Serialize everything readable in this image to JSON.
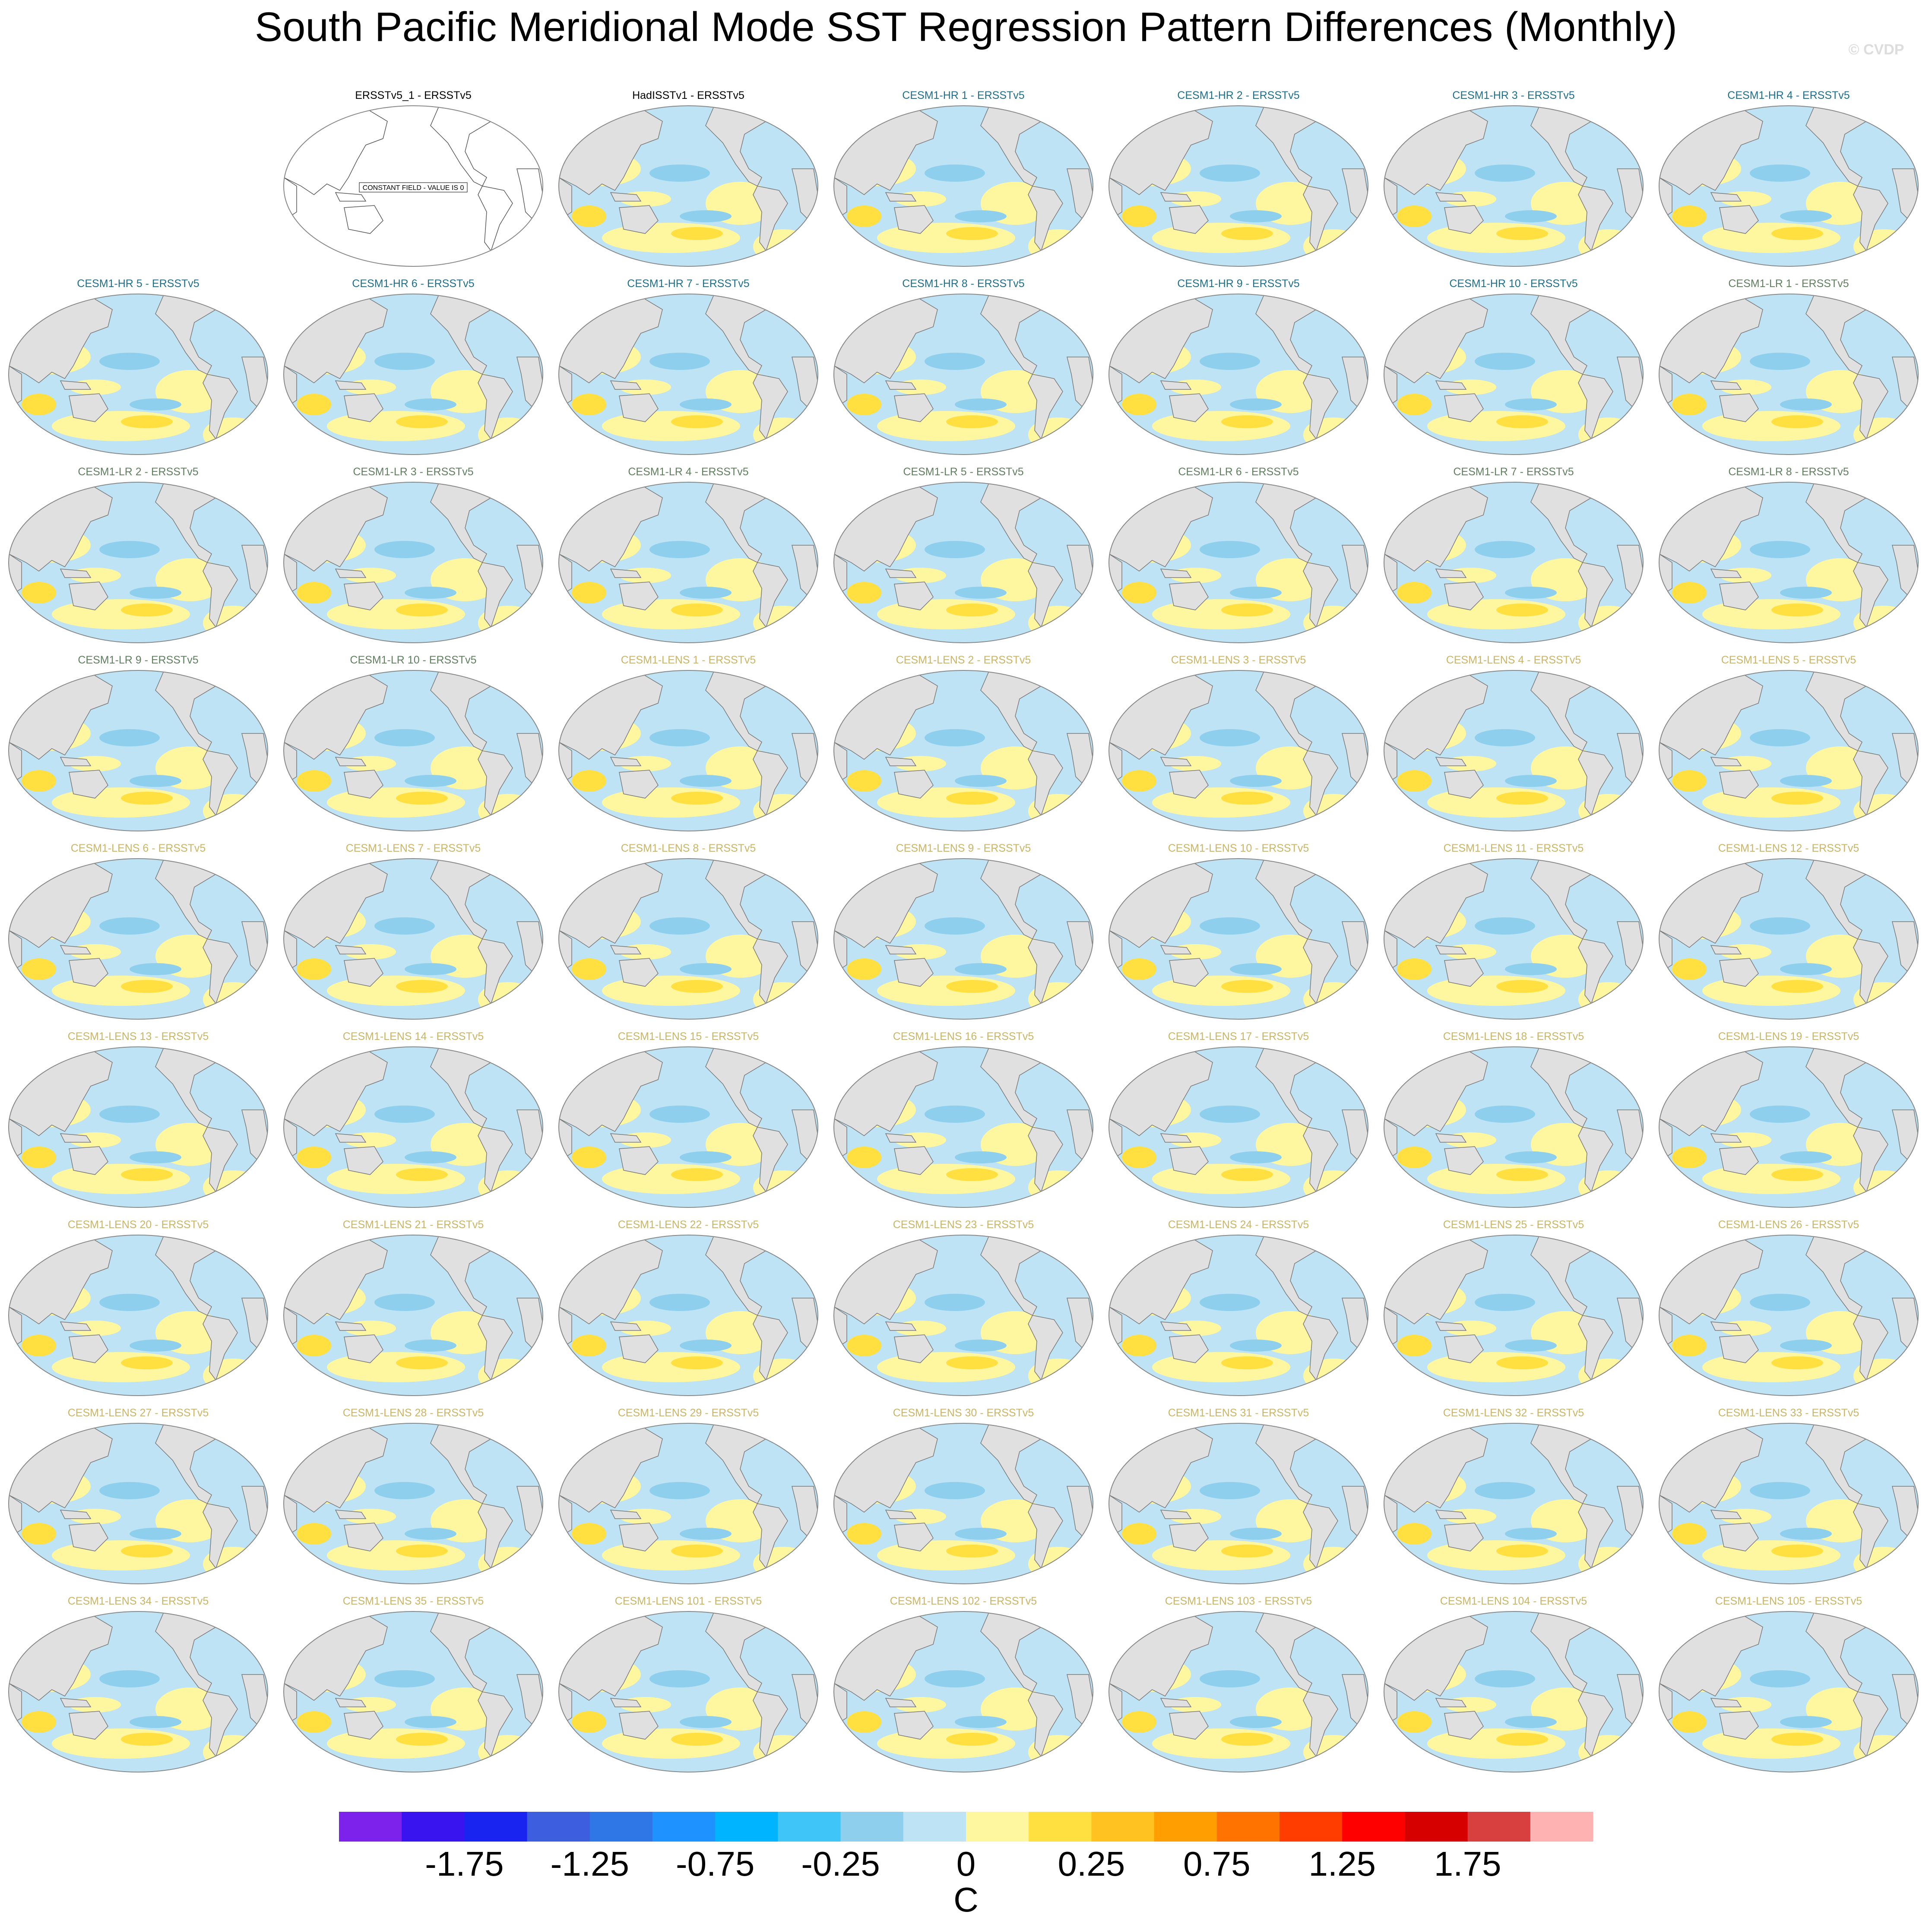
{
  "title": "South Pacific Meridional Mode SST Regression Pattern Differences (Monthly)",
  "watermark": "© CVDP",
  "panels": [
    {
      "title": "ERSSTv5_1 - ERSSTv5",
      "color": "#000000",
      "note": "CONSTANT FIELD - VALUE IS 0"
    },
    {
      "title": "HadISSTv1 - ERSSTv5",
      "color": "#000000"
    },
    {
      "title": "CESM1-HR 1 - ERSSTv5",
      "color": "#1f6f8b"
    },
    {
      "title": "CESM1-HR 2 - ERSSTv5",
      "color": "#1f6f8b"
    },
    {
      "title": "CESM1-HR 3 - ERSSTv5",
      "color": "#1f6f8b"
    },
    {
      "title": "CESM1-HR 4 - ERSSTv5",
      "color": "#1f6f8b"
    },
    {
      "title": "CESM1-HR 5 - ERSSTv5",
      "color": "#1f6f8b"
    },
    {
      "title": "CESM1-HR 6 - ERSSTv5",
      "color": "#1f6f8b"
    },
    {
      "title": "CESM1-HR 7 - ERSSTv5",
      "color": "#1f6f8b"
    },
    {
      "title": "CESM1-HR 8 - ERSSTv5",
      "color": "#1f6f8b"
    },
    {
      "title": "CESM1-HR 9 - ERSSTv5",
      "color": "#1f6f8b"
    },
    {
      "title": "CESM1-HR 10 - ERSSTv5",
      "color": "#1f6f8b"
    },
    {
      "title": "CESM1-LR 1 - ERSSTv5",
      "color": "#5f7f5f"
    },
    {
      "title": "CESM1-LR 2 - ERSSTv5",
      "color": "#5f7f5f"
    },
    {
      "title": "CESM1-LR 3 - ERSSTv5",
      "color": "#5f7f5f"
    },
    {
      "title": "CESM1-LR 4 - ERSSTv5",
      "color": "#5f7f5f"
    },
    {
      "title": "CESM1-LR 5 - ERSSTv5",
      "color": "#5f7f5f"
    },
    {
      "title": "CESM1-LR 6 - ERSSTv5",
      "color": "#5f7f5f"
    },
    {
      "title": "CESM1-LR 7 - ERSSTv5",
      "color": "#5f7f5f"
    },
    {
      "title": "CESM1-LR 8 - ERSSTv5",
      "color": "#5f7f5f"
    },
    {
      "title": "CESM1-LR 9 - ERSSTv5",
      "color": "#5f7f5f"
    },
    {
      "title": "CESM1-LR 10 - ERSSTv5",
      "color": "#5f7f5f"
    },
    {
      "title": "CESM1-LENS 1 - ERSSTv5",
      "color": "#c9b565"
    },
    {
      "title": "CESM1-LENS 2 - ERSSTv5",
      "color": "#c9b565"
    },
    {
      "title": "CESM1-LENS 3 - ERSSTv5",
      "color": "#c9b565"
    },
    {
      "title": "CESM1-LENS 4 - ERSSTv5",
      "color": "#c9b565"
    },
    {
      "title": "CESM1-LENS 5 - ERSSTv5",
      "color": "#c9b565"
    },
    {
      "title": "CESM1-LENS 6 - ERSSTv5",
      "color": "#c9b565"
    },
    {
      "title": "CESM1-LENS 7 - ERSSTv5",
      "color": "#c9b565"
    },
    {
      "title": "CESM1-LENS 8 - ERSSTv5",
      "color": "#c9b565"
    },
    {
      "title": "CESM1-LENS 9 - ERSSTv5",
      "color": "#c9b565"
    },
    {
      "title": "CESM1-LENS 10 - ERSSTv5",
      "color": "#c9b565"
    },
    {
      "title": "CESM1-LENS 11 - ERSSTv5",
      "color": "#c9b565"
    },
    {
      "title": "CESM1-LENS 12 - ERSSTv5",
      "color": "#c9b565"
    },
    {
      "title": "CESM1-LENS 13 - ERSSTv5",
      "color": "#c9b565"
    },
    {
      "title": "CESM1-LENS 14 - ERSSTv5",
      "color": "#c9b565"
    },
    {
      "title": "CESM1-LENS 15 - ERSSTv5",
      "color": "#c9b565"
    },
    {
      "title": "CESM1-LENS 16 - ERSSTv5",
      "color": "#c9b565"
    },
    {
      "title": "CESM1-LENS 17 - ERSSTv5",
      "color": "#c9b565"
    },
    {
      "title": "CESM1-LENS 18 - ERSSTv5",
      "color": "#c9b565"
    },
    {
      "title": "CESM1-LENS 19 - ERSSTv5",
      "color": "#c9b565"
    },
    {
      "title": "CESM1-LENS 20 - ERSSTv5",
      "color": "#c9b565"
    },
    {
      "title": "CESM1-LENS 21 - ERSSTv5",
      "color": "#c9b565"
    },
    {
      "title": "CESM1-LENS 22 - ERSSTv5",
      "color": "#c9b565"
    },
    {
      "title": "CESM1-LENS 23 - ERSSTv5",
      "color": "#c9b565"
    },
    {
      "title": "CESM1-LENS 24 - ERSSTv5",
      "color": "#c9b565"
    },
    {
      "title": "CESM1-LENS 25 - ERSSTv5",
      "color": "#c9b565"
    },
    {
      "title": "CESM1-LENS 26 - ERSSTv5",
      "color": "#c9b565"
    },
    {
      "title": "CESM1-LENS 27 - ERSSTv5",
      "color": "#c9b565"
    },
    {
      "title": "CESM1-LENS 28 - ERSSTv5",
      "color": "#c9b565"
    },
    {
      "title": "CESM1-LENS 29 - ERSSTv5",
      "color": "#c9b565"
    },
    {
      "title": "CESM1-LENS 30 - ERSSTv5",
      "color": "#c9b565"
    },
    {
      "title": "CESM1-LENS 31 - ERSSTv5",
      "color": "#c9b565"
    },
    {
      "title": "CESM1-LENS 32 - ERSSTv5",
      "color": "#c9b565"
    },
    {
      "title": "CESM1-LENS 33 - ERSSTv5",
      "color": "#c9b565"
    },
    {
      "title": "CESM1-LENS 34 - ERSSTv5",
      "color": "#c9b565"
    },
    {
      "title": "CESM1-LENS 35 - ERSSTv5",
      "color": "#c9b565"
    },
    {
      "title": "CESM1-LENS 101 - ERSSTv5",
      "color": "#c9b565"
    },
    {
      "title": "CESM1-LENS 102 - ERSSTv5",
      "color": "#c9b565"
    },
    {
      "title": "CESM1-LENS 103 - ERSSTv5",
      "color": "#c9b565"
    },
    {
      "title": "CESM1-LENS 104 - ERSSTv5",
      "color": "#c9b565"
    },
    {
      "title": "CESM1-LENS 105 - ERSSTv5",
      "color": "#c9b565"
    }
  ],
  "colorbar": {
    "colors": [
      "#7d22ea",
      "#3a14ee",
      "#1a24f0",
      "#3d5fdf",
      "#2f76e6",
      "#1e92ff",
      "#00b4ff",
      "#40c5f8",
      "#8fcfee",
      "#bde3f5",
      "#fff7a0",
      "#ffe040",
      "#ffc220",
      "#ff9e00",
      "#ff7300",
      "#ff3d00",
      "#ff0000",
      "#d60000",
      "#d84040",
      "#ffb2b2"
    ],
    "ticks": [
      -1.75,
      -1.25,
      -0.75,
      -0.25,
      0,
      0.25,
      0.75,
      1.25,
      1.75
    ],
    "label": "C"
  }
}
